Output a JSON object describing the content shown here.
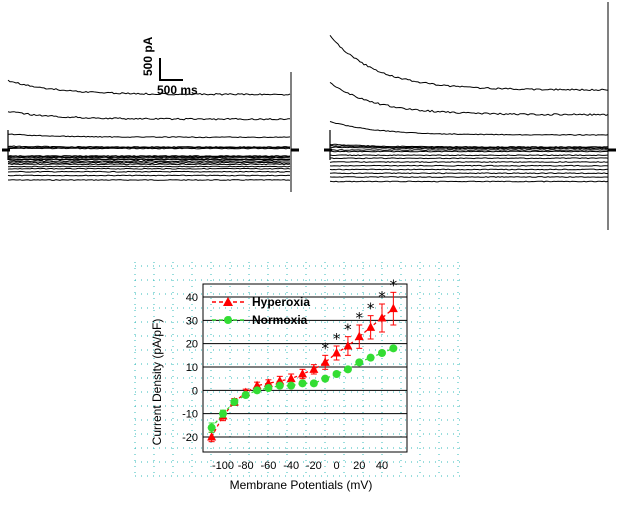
{
  "scale_bar": {
    "current_label": "500 pA",
    "time_label": "500 ms"
  },
  "traces": {
    "hyperoxia_panel": {
      "levels": [
        -40,
        -34,
        -29,
        -25,
        -22,
        -19,
        -17,
        -15,
        -13,
        -12,
        -10,
        -9,
        -8,
        2,
        3,
        4,
        17,
        41,
        74
      ]
    },
    "normoxia_panel": {
      "levels": [
        -42,
        -36,
        -31,
        -26,
        -21,
        -16,
        -11,
        -7,
        -2,
        0,
        2,
        3,
        4,
        20,
        47,
        80
      ]
    }
  },
  "chart_data": {
    "type": "scatter",
    "title": "",
    "xlabel": "Membrane Potentials (mV)",
    "ylabel": "Current Density (pA/pF)",
    "xlim": [
      -120,
      60
    ],
    "ylim": [
      -20,
      40
    ],
    "x_ticks": [
      "-100",
      "-80",
      "-60",
      "-40",
      "-20",
      "0",
      "20",
      "40"
    ],
    "y_ticks": [
      "40",
      "30",
      "20",
      "10",
      "0",
      "-10",
      "-20"
    ],
    "legend_position": "top-left",
    "series": [
      {
        "name": "Hyperoxia",
        "color": "#ff0000",
        "marker": "triangle",
        "x": [
          -110,
          -100,
          -90,
          -80,
          -70,
          -60,
          -50,
          -40,
          -30,
          -20,
          -10,
          0,
          10,
          20,
          30,
          40,
          50
        ],
        "y": [
          -20,
          -11,
          -5,
          -1,
          2,
          3,
          4,
          5,
          7,
          9,
          12,
          16,
          19,
          23,
          27,
          31,
          35
        ],
        "err": [
          2,
          2,
          1.5,
          1.5,
          1.5,
          1.5,
          2,
          2,
          2,
          2,
          3,
          3,
          4,
          5,
          5,
          6,
          7
        ],
        "significant": [
          false,
          false,
          false,
          false,
          false,
          false,
          false,
          false,
          false,
          false,
          true,
          true,
          true,
          true,
          true,
          true,
          true
        ]
      },
      {
        "name": "Normoxia",
        "color": "#33dd33",
        "marker": "circle",
        "x": [
          -110,
          -100,
          -90,
          -80,
          -70,
          -60,
          -50,
          -40,
          -30,
          -20,
          -10,
          0,
          10,
          20,
          30,
          40,
          50
        ],
        "y": [
          -16,
          -10,
          -5,
          -2,
          0,
          1,
          2,
          2,
          3,
          3,
          5,
          7,
          9,
          12,
          14,
          16,
          18
        ],
        "err": [
          2,
          1.5,
          1,
          1,
          1,
          1,
          1,
          1,
          1,
          1,
          1,
          1,
          1,
          1,
          1,
          1,
          1
        ]
      }
    ]
  }
}
